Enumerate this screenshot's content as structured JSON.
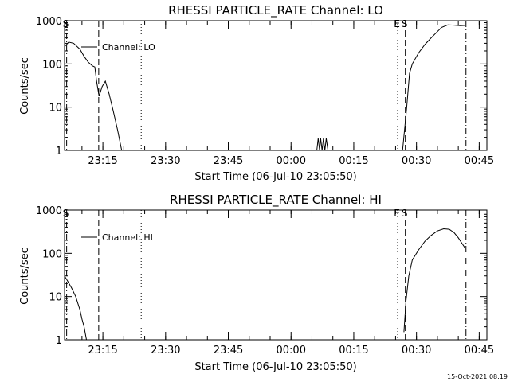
{
  "footer_timestamp": "15-Oct-2021 08:19",
  "chart_data": [
    {
      "type": "line",
      "title": "RHESSI PARTICLE_RATE Channel: LO",
      "xlabel": "Start Time (06-Jul-10 23:05:50)",
      "ylabel": "Counts/sec",
      "yscale": "log",
      "xlim": [
        "23:05:50",
        "00:46:50"
      ],
      "ylim": [
        1,
        1000
      ],
      "x_ticks": [
        "23:15",
        "23:30",
        "23:45",
        "00:00",
        "00:15",
        "00:30",
        "00:45"
      ],
      "y_ticks": [
        "1",
        "10",
        "100",
        "1000"
      ],
      "legend": "Channel: LO",
      "legend_position": "top-left",
      "grid": false,
      "series": [
        {
          "name": "Channel: LO",
          "color": "#000000",
          "segments": [
            {
              "time": [
                "23:05:50",
                "23:06:50",
                "23:08:00",
                "23:09:30",
                "23:10:30",
                "23:11:30",
                "23:12:30",
                "23:13:05",
                "23:13:30",
                "23:14:05",
                "23:14:50",
                "23:15:35",
                "23:16:30",
                "23:17:30",
                "23:18:30",
                "23:19:30"
              ],
              "counts": [
                250,
                320,
                300,
                220,
                150,
                110,
                90,
                85,
                40,
                18,
                30,
                40,
                20,
                8,
                3,
                1
              ]
            },
            {
              "time": [
                "00:06:10",
                "00:06:30",
                "00:06:50",
                "00:07:05",
                "00:07:25",
                "00:07:45",
                "00:08:05",
                "00:08:25",
                "00:08:50"
              ],
              "counts": [
                1,
                1.9,
                1,
                1.9,
                1,
                1.9,
                1,
                1.9,
                1
              ]
            },
            {
              "time": [
                "00:26:40",
                "00:27:40",
                "00:28:20",
                "00:29:00",
                "00:30:30",
                "00:32:00",
                "00:33:30",
                "00:35:00",
                "00:36:00",
                "00:37:30",
                "00:39:00",
                "00:40:30",
                "00:41:40"
              ],
              "counts": [
                1,
                10,
                60,
                100,
                180,
                280,
                400,
                560,
                700,
                800,
                790,
                770,
                780
              ]
            }
          ]
        }
      ],
      "markers": [
        {
          "time": "23:06:20",
          "style": "dash-dot",
          "label": "S"
        },
        {
          "time": "23:14:00",
          "style": "dashed",
          "label": ""
        },
        {
          "time": "23:24:10",
          "style": "dotted",
          "label": ""
        },
        {
          "time": "00:25:30",
          "style": "dotted",
          "label": "E"
        },
        {
          "time": "00:27:20",
          "style": "dashed",
          "label": "S"
        },
        {
          "time": "00:41:50",
          "style": "dash-dot",
          "label": ""
        }
      ]
    },
    {
      "type": "line",
      "title": "RHESSI PARTICLE_RATE Channel: HI",
      "xlabel": "Start Time (06-Jul-10 23:05:50)",
      "ylabel": "Counts/sec",
      "yscale": "log",
      "xlim": [
        "23:05:50",
        "00:46:50"
      ],
      "ylim": [
        1,
        1000
      ],
      "x_ticks": [
        "23:15",
        "23:30",
        "23:45",
        "00:00",
        "00:15",
        "00:30",
        "00:45"
      ],
      "y_ticks": [
        "1",
        "10",
        "100",
        "1000"
      ],
      "legend": "Channel: HI",
      "legend_position": "top-left",
      "grid": false,
      "series": [
        {
          "name": "Channel: HI",
          "color": "#000000",
          "segments": [
            {
              "time": [
                "23:05:50",
                "23:06:40",
                "23:07:30",
                "23:08:30",
                "23:09:30",
                "23:10:00",
                "23:10:30",
                "23:11:05"
              ],
              "counts": [
                30,
                22,
                16,
                10,
                5,
                3,
                2,
                1
              ]
            },
            {
              "time": [
                "00:27:00",
                "00:27:30",
                "00:28:10",
                "00:29:00",
                "00:30:30",
                "00:32:00",
                "00:33:30",
                "00:35:00",
                "00:36:30",
                "00:37:50",
                "00:39:00",
                "00:40:00",
                "00:41:40"
              ],
              "counts": [
                1.5,
                8,
                30,
                70,
                120,
                190,
                260,
                330,
                370,
                360,
                300,
                230,
                130
              ]
            }
          ]
        }
      ],
      "markers": [
        {
          "time": "23:06:20",
          "style": "dash-dot",
          "label": "S"
        },
        {
          "time": "23:14:00",
          "style": "dashed",
          "label": ""
        },
        {
          "time": "23:24:10",
          "style": "dotted",
          "label": ""
        },
        {
          "time": "00:25:30",
          "style": "dotted",
          "label": "E"
        },
        {
          "time": "00:27:20",
          "style": "dashed",
          "label": "S"
        },
        {
          "time": "00:41:50",
          "style": "dash-dot",
          "label": ""
        }
      ]
    }
  ]
}
